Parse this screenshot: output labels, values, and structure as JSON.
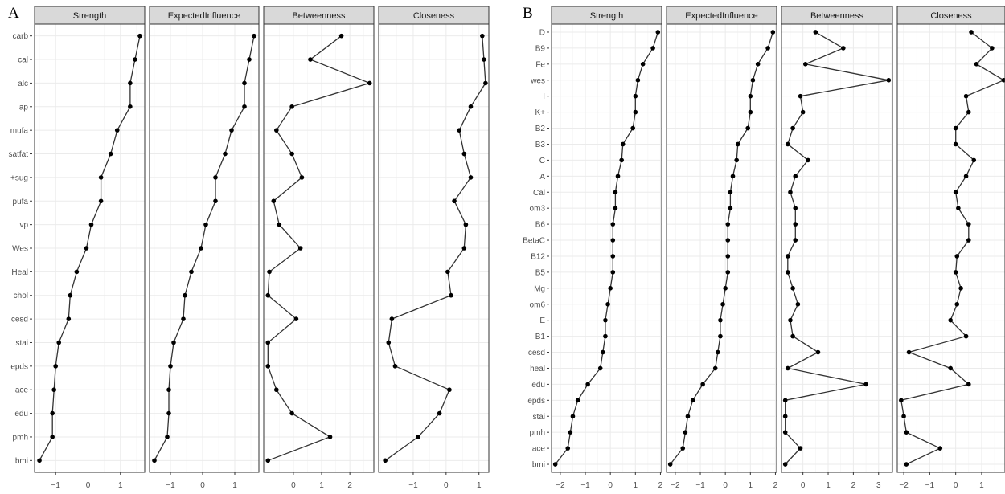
{
  "colors": {
    "strip_fill": "#d9d9d9",
    "panel_border": "#333333",
    "grid": "#ebebeb",
    "line": "#333333",
    "point": "#000000"
  },
  "chart_data": [
    {
      "type": "line",
      "panel_label": "A",
      "facets": [
        "Strength",
        "ExpectedInfluence",
        "Betweenness",
        "Closeness"
      ],
      "categories": [
        "carb",
        "cal",
        "alc",
        "ap",
        "mufa",
        "satfat",
        "+sug",
        "pufa",
        "vp",
        "Wes",
        "Heal",
        "chol",
        "cesd",
        "stai",
        "epds",
        "ace",
        "edu",
        "pmh",
        "bmi"
      ],
      "series": [
        {
          "facet": "Strength",
          "values": [
            1.6,
            1.45,
            1.3,
            1.3,
            0.9,
            0.7,
            0.4,
            0.4,
            0.1,
            -0.05,
            -0.35,
            -0.55,
            -0.6,
            -0.9,
            -1.0,
            -1.05,
            -1.1,
            -1.1,
            -1.5
          ],
          "ticks": [
            -1,
            0,
            1
          ],
          "xlim": [
            -1.65,
            1.75
          ]
        },
        {
          "facet": "ExpectedInfluence",
          "values": [
            1.6,
            1.45,
            1.3,
            1.3,
            0.9,
            0.7,
            0.4,
            0.4,
            0.1,
            -0.05,
            -0.35,
            -0.55,
            -0.6,
            -0.9,
            -1.0,
            -1.05,
            -1.05,
            -1.1,
            -1.5
          ],
          "ticks": [
            -1,
            0,
            1
          ],
          "xlim": [
            -1.65,
            1.75
          ]
        },
        {
          "facet": "Betweenness",
          "values": [
            1.7,
            0.6,
            2.7,
            -0.05,
            -0.6,
            -0.05,
            0.3,
            -0.7,
            -0.5,
            0.25,
            -0.85,
            -0.9,
            0.1,
            -0.9,
            -0.9,
            -0.6,
            -0.05,
            1.3,
            -0.9
          ],
          "ticks": [
            0,
            1,
            2
          ],
          "xlim": [
            -1.05,
            2.85
          ]
        },
        {
          "facet": "Closeness",
          "values": [
            1.1,
            1.15,
            1.2,
            0.75,
            0.4,
            0.55,
            0.75,
            0.25,
            0.6,
            0.55,
            0.05,
            0.15,
            -1.65,
            -1.75,
            -1.55,
            0.1,
            -0.2,
            -0.85,
            -1.85
          ],
          "ticks": [
            -1,
            0,
            1
          ],
          "xlim": [
            -2.05,
            1.3
          ]
        }
      ]
    },
    {
      "type": "line",
      "panel_label": "B",
      "facets": [
        "Strength",
        "ExpectedInfluence",
        "Betweenness",
        "Closeness"
      ],
      "categories": [
        "D",
        "B9",
        "Fe",
        "wes",
        "I",
        "K+",
        "B2",
        "B3",
        "C",
        "A",
        "Cal",
        "om3",
        "B6",
        "BetaC",
        "B12",
        "B5",
        "Mg",
        "om6",
        "E",
        "B1",
        "cesd",
        "heal",
        "edu",
        "epds",
        "stai",
        "pmh",
        "ace",
        "bmi"
      ],
      "series": [
        {
          "facet": "Strength",
          "values": [
            1.9,
            1.7,
            1.3,
            1.1,
            1.0,
            1.0,
            0.9,
            0.5,
            0.45,
            0.3,
            0.2,
            0.2,
            0.1,
            0.1,
            0.1,
            0.1,
            0.0,
            -0.1,
            -0.2,
            -0.2,
            -0.3,
            -0.4,
            -0.9,
            -1.3,
            -1.5,
            -1.6,
            -1.7,
            -2.2
          ],
          "ticks": [
            -2,
            -1,
            0,
            1,
            2
          ],
          "xlim": [
            -2.35,
            2.05
          ]
        },
        {
          "facet": "ExpectedInfluence",
          "values": [
            1.9,
            1.7,
            1.3,
            1.1,
            1.0,
            1.0,
            0.9,
            0.5,
            0.45,
            0.3,
            0.2,
            0.2,
            0.1,
            0.1,
            0.1,
            0.1,
            0.0,
            -0.1,
            -0.2,
            -0.2,
            -0.3,
            -0.4,
            -0.9,
            -1.3,
            -1.5,
            -1.6,
            -1.7,
            -2.2
          ],
          "ticks": [
            -2,
            -1,
            0,
            1,
            2
          ],
          "xlim": [
            -2.35,
            2.05
          ]
        },
        {
          "facet": "Betweenness",
          "values": [
            0.5,
            1.6,
            0.1,
            3.4,
            -0.1,
            0.0,
            -0.4,
            -0.6,
            0.2,
            -0.3,
            -0.5,
            -0.3,
            -0.3,
            -0.3,
            -0.6,
            -0.6,
            -0.4,
            -0.2,
            -0.5,
            -0.4,
            0.6,
            -0.6,
            2.5,
            -0.7,
            -0.7,
            -0.7,
            -0.1,
            -0.7
          ],
          "ticks": [
            0,
            1,
            2,
            3
          ],
          "xlim": [
            -0.85,
            3.55
          ]
        },
        {
          "facet": "Closeness",
          "values": [
            0.6,
            1.4,
            0.8,
            1.85,
            0.4,
            0.5,
            0.0,
            0.0,
            0.7,
            0.4,
            0.0,
            0.1,
            0.5,
            0.5,
            0.05,
            0.0,
            0.2,
            0.05,
            -0.2,
            0.4,
            -1.8,
            -0.2,
            0.5,
            -2.1,
            -2.0,
            -1.9,
            -0.6,
            -1.9
          ],
          "ticks": [
            -2,
            -1,
            0,
            1
          ],
          "xlim": [
            -2.25,
            1.9
          ]
        }
      ]
    }
  ]
}
